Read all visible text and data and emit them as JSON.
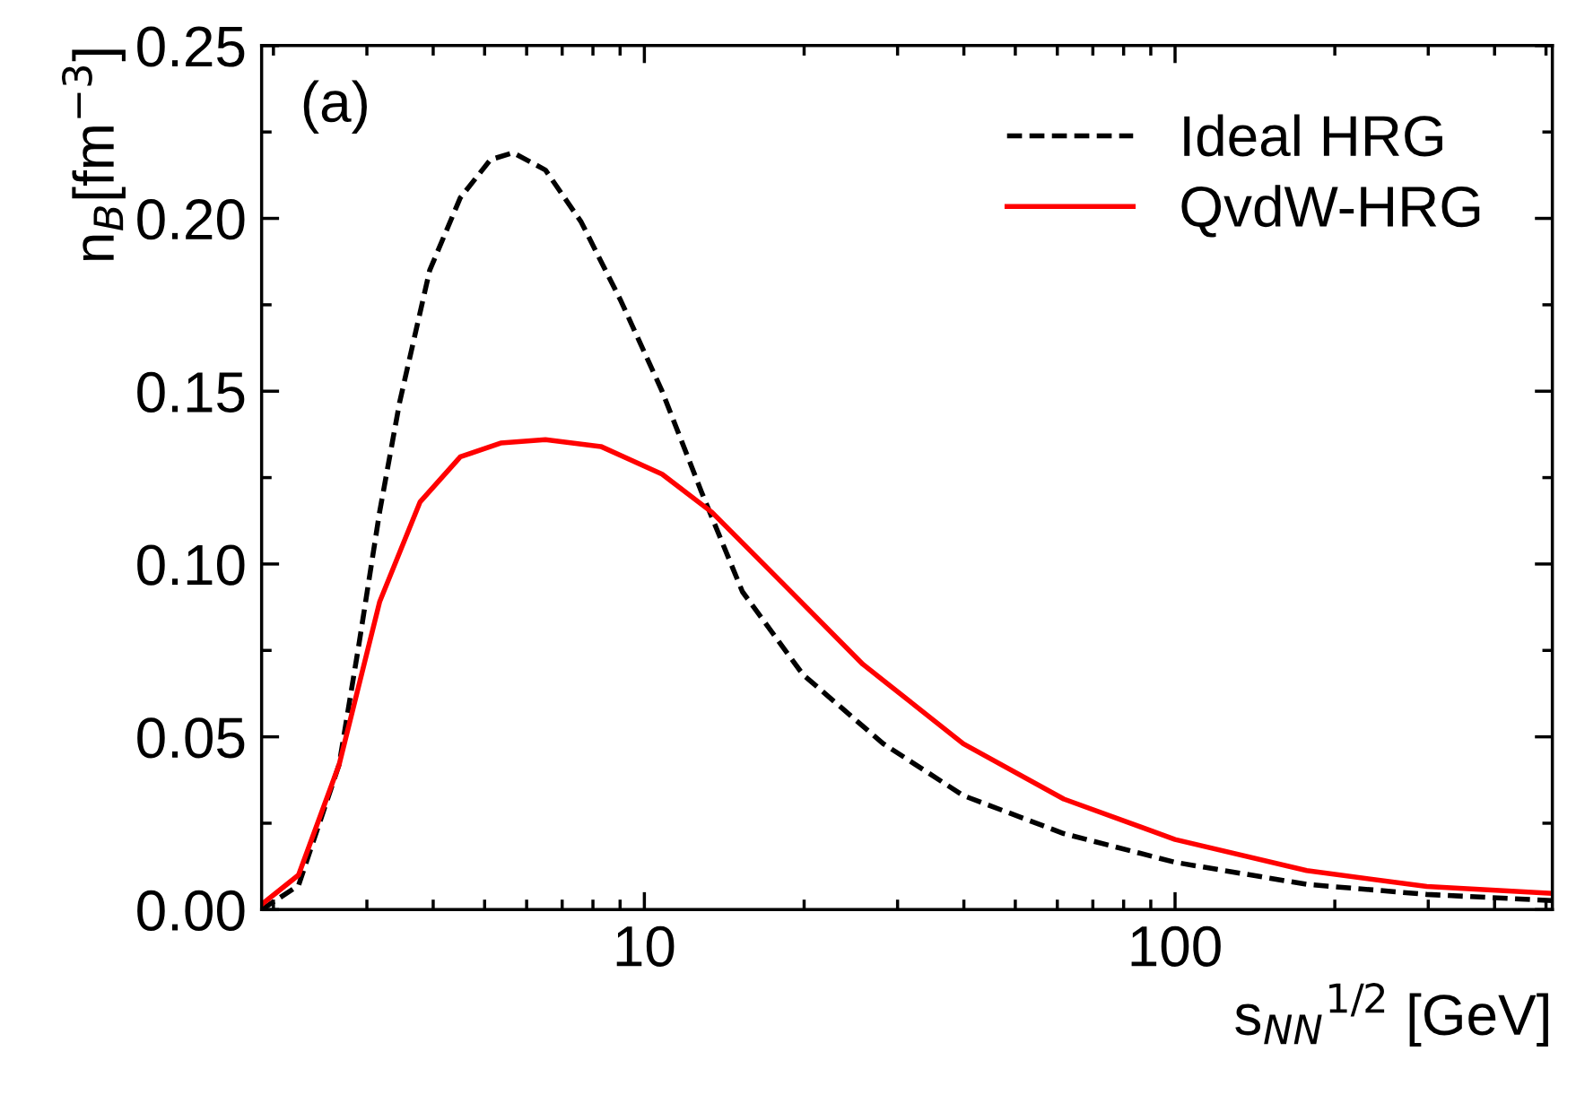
{
  "chart_data": {
    "type": "line",
    "xlabel": "s$_{NN}$$^{1/2}$ [GeV]",
    "ylabel": "n$_{B}$[fm$^{−3}$]",
    "annotations": [
      "(a)"
    ],
    "log": "x",
    "xlim": [
      1.9,
      514
    ],
    "xticks": [
      10,
      100
    ],
    "ylim": [
      0,
      0.25
    ],
    "yticks": [
      {
        "value": 0,
        "label": "0.00"
      },
      {
        "value": 0.05,
        "label": "0.05"
      },
      {
        "value": 0.1,
        "label": "0.10"
      },
      {
        "value": 0.15,
        "label": "0.15"
      },
      {
        "value": 0.2,
        "label": "0.20"
      },
      {
        "value": 0.25,
        "label": "0.25"
      }
    ],
    "grid": false,
    "legend": "top right",
    "marker": "none",
    "series": [
      {
        "name": "Ideal HRG",
        "color": "#000000",
        "line_style": "dashed",
        "x": [
          1.9,
          2.23,
          2.66,
          2.9,
          3.17,
          3.46,
          3.94,
          4.5,
          5.13,
          5.66,
          6.51,
          7.6,
          9.04,
          10.8,
          12.8,
          15.3,
          19.9,
          28.2,
          39.9,
          61.7,
          100,
          177,
          298,
          514
        ],
        "values": [
          0.0,
          0.007,
          0.042,
          0.077,
          0.115,
          0.147,
          0.185,
          0.206,
          0.217,
          0.219,
          0.214,
          0.199,
          0.176,
          0.15,
          0.121,
          0.092,
          0.068,
          0.048,
          0.033,
          0.022,
          0.0137,
          0.0073,
          0.0044,
          0.0026
        ]
      },
      {
        "name": "QvdW-HRG",
        "color": "#ff0000",
        "line_style": "solid",
        "x": [
          1.9,
          2.23,
          2.66,
          3.17,
          3.78,
          4.5,
          5.36,
          6.51,
          8.28,
          10.8,
          13.4,
          18.2,
          25.8,
          39.9,
          61.7,
          100,
          177,
          298,
          514
        ],
        "values": [
          0.0015,
          0.01,
          0.042,
          0.089,
          0.118,
          0.131,
          0.135,
          0.136,
          0.134,
          0.126,
          0.115,
          0.0945,
          0.071,
          0.048,
          0.032,
          0.0203,
          0.0113,
          0.0067,
          0.0047
        ]
      }
    ]
  }
}
